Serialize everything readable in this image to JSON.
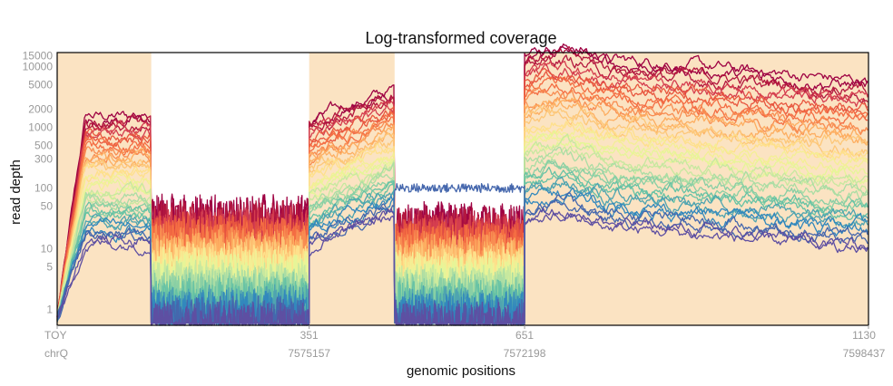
{
  "chart_data": {
    "type": "line",
    "title": "Log-transformed coverage",
    "xlabel": "genomic positions",
    "ylabel": "read depth",
    "y_scale": "log",
    "ylim": [
      0.55,
      17000
    ],
    "xlim": [
      0,
      1130
    ],
    "grid": false,
    "legend": "none",
    "y_ticks": [
      1,
      5,
      10,
      50,
      100,
      300,
      500,
      1000,
      2000,
      5000,
      10000,
      15000
    ],
    "y_tick_labels": [
      "1",
      "5",
      "10",
      "50",
      "100",
      "300",
      "500",
      "1000",
      "2000",
      "5000",
      "10000",
      "15000"
    ],
    "x_ticks": [
      {
        "x": 0,
        "top": "TOY",
        "bottom": "chrQ"
      },
      {
        "x": 351,
        "top": "351",
        "bottom": "7575157"
      },
      {
        "x": 651,
        "top": "651",
        "bottom": "7572198"
      },
      {
        "x": 1130,
        "top": "1130",
        "bottom": "7598437"
      }
    ],
    "shaded_regions": [
      [
        0,
        131
      ],
      [
        351,
        470
      ],
      [
        651,
        1130
      ]
    ],
    "shade_color": "#fbe3c2",
    "series_colors": [
      "#9e0142",
      "#b3183f",
      "#d53e4f",
      "#e8573f",
      "#f46d43",
      "#f88d52",
      "#fdae61",
      "#fdc778",
      "#fee08b",
      "#f3ef95",
      "#e6f598",
      "#c7e89f",
      "#abdda4",
      "#89cfa5",
      "#66c2a5",
      "#4fa4b0",
      "#3288bd",
      "#4567ad",
      "#5e4fa2"
    ],
    "num_series": 38,
    "segment_levels": [
      {
        "x_range": [
          0,
          131
        ],
        "low": 12,
        "high": 1500,
        "shape": "ramp_up"
      },
      {
        "x_range": [
          131,
          351
        ],
        "low": 0.6,
        "high": 40,
        "shape": "noisy_low"
      },
      {
        "x_range": [
          351,
          470
        ],
        "low": 25,
        "high": 3000,
        "shape": "rising"
      },
      {
        "x_range": [
          470,
          651
        ],
        "low": 0.6,
        "high": 30,
        "shape": "noisy_low",
        "outlier_series_level": 100
      },
      {
        "x_range": [
          651,
          1130
        ],
        "low": 20,
        "high": 12000,
        "shape": "peak_then_decline"
      }
    ]
  }
}
